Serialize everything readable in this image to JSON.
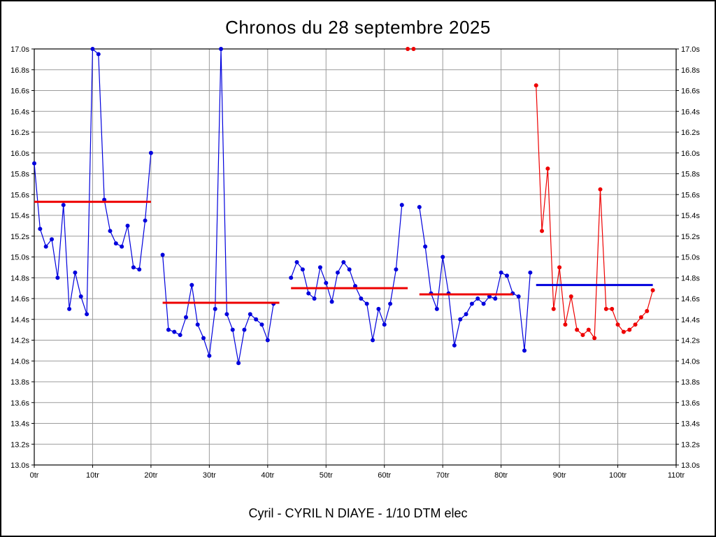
{
  "title": "Chronos du 28 septembre 2025",
  "caption": "Cyril - CYRIL N DIAYE - 1/10 DTM elec",
  "chart_data": {
    "type": "line",
    "title": "Chronos du 28 septembre 2025",
    "xlabel": "",
    "ylabel": "",
    "xlim": [
      0,
      110
    ],
    "ylim": [
      13.0,
      17.0
    ],
    "grid": true,
    "legend_position": "none",
    "x_ticks": [
      0,
      10,
      20,
      30,
      40,
      50,
      60,
      70,
      80,
      90,
      100,
      110
    ],
    "x_tick_labels": [
      "0tr",
      "10tr",
      "20tr",
      "30tr",
      "40tr",
      "50tr",
      "60tr",
      "70tr",
      "80tr",
      "90tr",
      "100tr",
      "110tr"
    ],
    "y_ticks": [
      13.0,
      13.2,
      13.4,
      13.6,
      13.8,
      14.0,
      14.2,
      14.4,
      14.6,
      14.8,
      15.0,
      15.2,
      15.4,
      15.6,
      15.8,
      16.0,
      16.2,
      16.4,
      16.6,
      16.8,
      17.0
    ],
    "y_tick_labels": [
      "13.0s",
      "13.2s",
      "13.4s",
      "13.6s",
      "13.8s",
      "14.0s",
      "14.2s",
      "14.4s",
      "14.6s",
      "14.8s",
      "15.0s",
      "15.2s",
      "15.4s",
      "15.6s",
      "15.8s",
      "16.0s",
      "16.2s",
      "16.4s",
      "16.6s",
      "16.8s",
      "17.0s"
    ],
    "colors": {
      "grid": "#9b9b9b",
      "axis": "#000000",
      "lap_blue": "#0000dd",
      "lap_red": "#ee0000",
      "average_red": "#ee0000",
      "average_blue": "#0000dd"
    },
    "series": [
      {
        "name": "stint-1-laps",
        "color": "#0000dd",
        "points": [
          [
            0,
            15.9
          ],
          [
            1,
            15.27
          ],
          [
            2,
            15.1
          ],
          [
            3,
            15.17
          ],
          [
            4,
            14.8
          ],
          [
            5,
            15.5
          ],
          [
            6,
            14.5
          ],
          [
            7,
            14.85
          ],
          [
            8,
            14.62
          ],
          [
            9,
            14.45
          ],
          [
            10,
            17.0
          ],
          [
            11,
            16.95
          ],
          [
            12,
            15.55
          ],
          [
            13,
            15.25
          ],
          [
            14,
            15.13
          ],
          [
            15,
            15.1
          ],
          [
            16,
            15.3
          ],
          [
            17,
            14.9
          ],
          [
            18,
            14.88
          ],
          [
            19,
            15.35
          ],
          [
            20,
            16.0
          ]
        ]
      },
      {
        "name": "stint-2-laps",
        "color": "#0000dd",
        "points": [
          [
            22,
            15.02
          ],
          [
            23,
            14.3
          ],
          [
            24,
            14.28
          ],
          [
            25,
            14.25
          ],
          [
            26,
            14.42
          ],
          [
            27,
            14.73
          ],
          [
            28,
            14.35
          ],
          [
            29,
            14.22
          ],
          [
            30,
            14.05
          ],
          [
            31,
            14.5
          ],
          [
            32,
            17.0
          ],
          [
            33,
            14.45
          ],
          [
            34,
            14.3
          ],
          [
            35,
            13.98
          ],
          [
            36,
            14.3
          ],
          [
            37,
            14.45
          ],
          [
            38,
            14.4
          ],
          [
            39,
            14.35
          ],
          [
            40,
            14.2
          ],
          [
            41,
            14.55
          ]
        ]
      },
      {
        "name": "stint-3-laps",
        "color": "#0000dd",
        "points": [
          [
            44,
            14.8
          ],
          [
            45,
            14.95
          ],
          [
            46,
            14.88
          ],
          [
            47,
            14.65
          ],
          [
            48,
            14.6
          ],
          [
            49,
            14.9
          ],
          [
            50,
            14.75
          ],
          [
            51,
            14.57
          ],
          [
            52,
            14.85
          ],
          [
            53,
            14.95
          ],
          [
            54,
            14.88
          ],
          [
            55,
            14.72
          ],
          [
            56,
            14.6
          ],
          [
            57,
            14.55
          ],
          [
            58,
            14.2
          ],
          [
            59,
            14.5
          ],
          [
            60,
            14.35
          ],
          [
            61,
            14.55
          ],
          [
            62,
            14.88
          ],
          [
            63,
            15.5
          ]
        ]
      },
      {
        "name": "stint-4-laps",
        "color": "#0000dd",
        "points": [
          [
            66,
            15.48
          ],
          [
            67,
            15.1
          ],
          [
            68,
            14.65
          ],
          [
            69,
            14.5
          ],
          [
            70,
            15.0
          ],
          [
            71,
            14.65
          ],
          [
            72,
            14.15
          ],
          [
            73,
            14.4
          ],
          [
            74,
            14.45
          ],
          [
            75,
            14.55
          ],
          [
            76,
            14.6
          ],
          [
            77,
            14.55
          ],
          [
            78,
            14.62
          ],
          [
            79,
            14.6
          ],
          [
            80,
            14.85
          ],
          [
            81,
            14.82
          ],
          [
            82,
            14.65
          ],
          [
            83,
            14.62
          ],
          [
            84,
            14.1
          ],
          [
            85,
            14.85
          ]
        ]
      },
      {
        "name": "stint-5-laps",
        "color": "#ee0000",
        "points": [
          [
            86,
            16.65
          ],
          [
            87,
            15.25
          ],
          [
            88,
            15.85
          ],
          [
            89,
            14.5
          ],
          [
            90,
            14.9
          ],
          [
            91,
            14.35
          ],
          [
            92,
            14.62
          ],
          [
            93,
            14.3
          ],
          [
            94,
            14.25
          ],
          [
            95,
            14.3
          ],
          [
            96,
            14.22
          ],
          [
            97,
            15.65
          ],
          [
            98,
            14.5
          ],
          [
            99,
            14.5
          ],
          [
            100,
            14.35
          ],
          [
            101,
            14.28
          ],
          [
            102,
            14.3
          ],
          [
            103,
            14.35
          ],
          [
            104,
            14.42
          ],
          [
            105,
            14.48
          ],
          [
            106,
            14.68
          ]
        ]
      }
    ],
    "outlier_points": {
      "name": "clipped-laps",
      "color": "#ee0000",
      "points": [
        [
          64,
          17.0
        ],
        [
          65,
          17.0
        ]
      ]
    },
    "average_segments": [
      {
        "name": "stint-1-average-line",
        "x1": 0,
        "x2": 20,
        "y": 15.53,
        "color": "#ee0000"
      },
      {
        "name": "stint-2-average-line",
        "x1": 22,
        "x2": 42,
        "y": 14.56,
        "color": "#ee0000"
      },
      {
        "name": "stint-3-average-line",
        "x1": 44,
        "x2": 64,
        "y": 14.7,
        "color": "#ee0000"
      },
      {
        "name": "stint-4-average-line",
        "x1": 66,
        "x2": 82,
        "y": 14.64,
        "color": "#ee0000"
      },
      {
        "name": "stint-5-average-line",
        "x1": 86,
        "x2": 106,
        "y": 14.73,
        "color": "#0000dd"
      }
    ]
  }
}
